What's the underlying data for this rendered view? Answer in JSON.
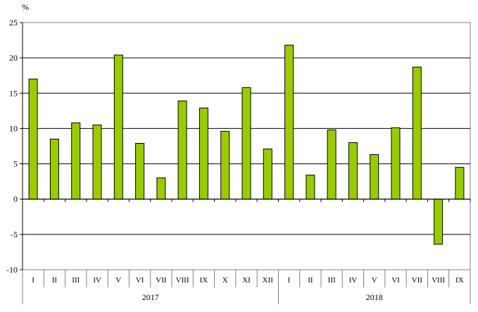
{
  "chart_data": {
    "type": "bar",
    "ylabel": "%",
    "ylim": [
      -10,
      25
    ],
    "yticks": [
      25,
      20,
      15,
      10,
      5,
      0,
      -5,
      -10
    ],
    "grid": true,
    "bar_color": "#99cc00",
    "bar_border": "#000000",
    "categories": [
      "I",
      "II",
      "III",
      "IV",
      "V",
      "VI",
      "VII",
      "VIII",
      "IX",
      "X",
      "XI",
      "XII",
      "I",
      "II",
      "III",
      "IV",
      "V",
      "VI",
      "VII",
      "VIII",
      "IX"
    ],
    "groups": [
      {
        "label": "2017",
        "count": 12
      },
      {
        "label": "2018",
        "count": 9
      }
    ],
    "values": [
      17.0,
      8.5,
      10.8,
      10.5,
      20.4,
      7.9,
      3.0,
      13.9,
      12.9,
      9.6,
      15.8,
      7.1,
      21.8,
      3.4,
      9.8,
      8.0,
      6.3,
      10.1,
      18.7,
      -6.4,
      4.5
    ]
  }
}
